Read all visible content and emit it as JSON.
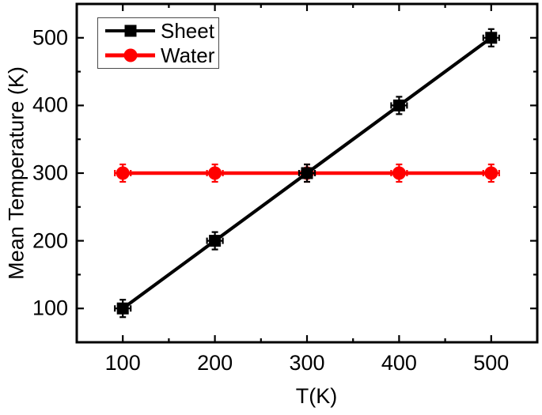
{
  "chart_data": {
    "type": "line",
    "title": "",
    "xlabel": "T(K)",
    "ylabel": "Mean Temperature (K)",
    "xlim": [
      50,
      550
    ],
    "ylim": [
      50,
      550
    ],
    "grid": false,
    "x": [
      100,
      200,
      300,
      400,
      500
    ],
    "series": [
      {
        "name": "Sheet",
        "color": "#000000",
        "marker": "square",
        "values": [
          100,
          200,
          300,
          400,
          500
        ]
      },
      {
        "name": "Water",
        "color": "#ff0000",
        "marker": "circle",
        "values": [
          300,
          300,
          300,
          300,
          300
        ]
      }
    ],
    "x_major_ticks": [
      100,
      200,
      300,
      400,
      500
    ],
    "x_minor_ticks": [
      150,
      250,
      350,
      450
    ],
    "y_major_ticks": [
      100,
      200,
      300,
      400,
      500
    ],
    "y_minor_ticks": [
      150,
      250,
      350,
      450
    ],
    "error_bars": "tiny capped x/y error bars at each point, smaller than marker size",
    "legend": {
      "position": "top-left",
      "entries": [
        "Sheet",
        "Water"
      ]
    },
    "colors": {
      "axis": "#000000",
      "sheet_series": "#000000",
      "water_series": "#ff0000",
      "background": "#ffffff"
    }
  }
}
